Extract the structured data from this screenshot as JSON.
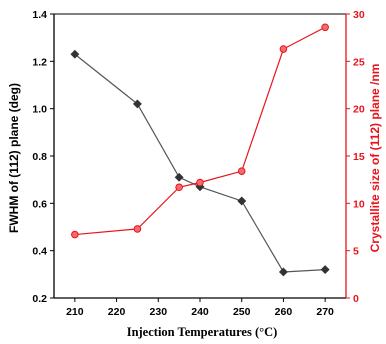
{
  "chart_data": {
    "type": "line",
    "xlabel": "Injection Temperatures (°C)",
    "ylabel_left": "FWHM of (112) plane (deg)",
    "ylabel_right": "Crystallite size of (112) plane /nm",
    "x_ticks": [
      "210",
      "220",
      "230",
      "240",
      "250",
      "260",
      "270"
    ],
    "y_left_ticks": [
      "0.2",
      "0.4",
      "0.6",
      "0.8",
      "1.0",
      "1.2",
      "1.4"
    ],
    "y_right_ticks": [
      "0",
      "5",
      "10",
      "15",
      "20",
      "25",
      "30"
    ],
    "xlim": [
      205,
      275
    ],
    "ylim_left": [
      0.2,
      1.4
    ],
    "ylim_right": [
      0,
      30
    ],
    "grid": false,
    "colors": {
      "left_series": "#555555",
      "left_marker": "#333333",
      "right_series": "#e8141b",
      "right_axis": "#e8141b"
    },
    "series": [
      {
        "axis": "left",
        "marker": "diamond",
        "x": [
          210,
          225,
          235,
          240,
          250,
          260,
          270
        ],
        "values": [
          1.23,
          1.02,
          0.71,
          0.67,
          0.61,
          0.31,
          0.32
        ]
      },
      {
        "axis": "right",
        "marker": "circle",
        "x": [
          210,
          225,
          235,
          240,
          250,
          260,
          270
        ],
        "values": [
          6.7,
          7.3,
          11.7,
          12.2,
          13.4,
          26.3,
          28.6
        ]
      }
    ]
  }
}
